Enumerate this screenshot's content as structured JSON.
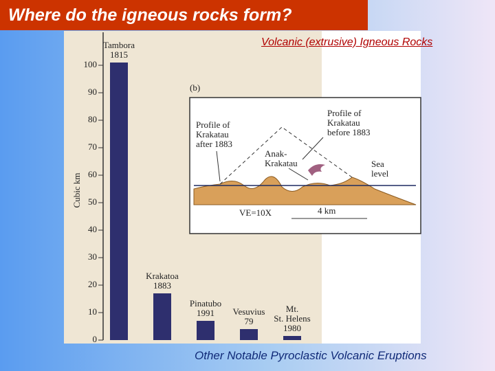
{
  "slide": {
    "title": "Where do the igneous rocks form?",
    "subtitle": "Volcanic (extrusive) Igneous Rocks",
    "caption": "Other Notable Pyroclastic Volcanic Eruptions"
  },
  "inset": {
    "label": "(b)",
    "after": "Profile of\nKrakatau\nafter 1883",
    "before": "Profile of\nKrakatau\nbefore 1883",
    "anak": "Anak-\nKrakatau",
    "sea": "Sea\nlevel",
    "ve": "VE=10X",
    "scale": "4 km"
  },
  "chart_data": {
    "type": "bar",
    "y_label": "Cubic km",
    "categories": [
      "Tambora\n1815",
      "Krakatoa\n1883",
      "Pinatubo\n1991",
      "Vesuvius\n79",
      "Mt.\nSt. Helens\n1980"
    ],
    "values": [
      101,
      17,
      7,
      4,
      1.5
    ],
    "color": "#2e2f6e",
    "ylim": [
      0,
      112
    ],
    "yticks": [
      0,
      10,
      20,
      30,
      40,
      50,
      60,
      70,
      80,
      90,
      100
    ]
  }
}
